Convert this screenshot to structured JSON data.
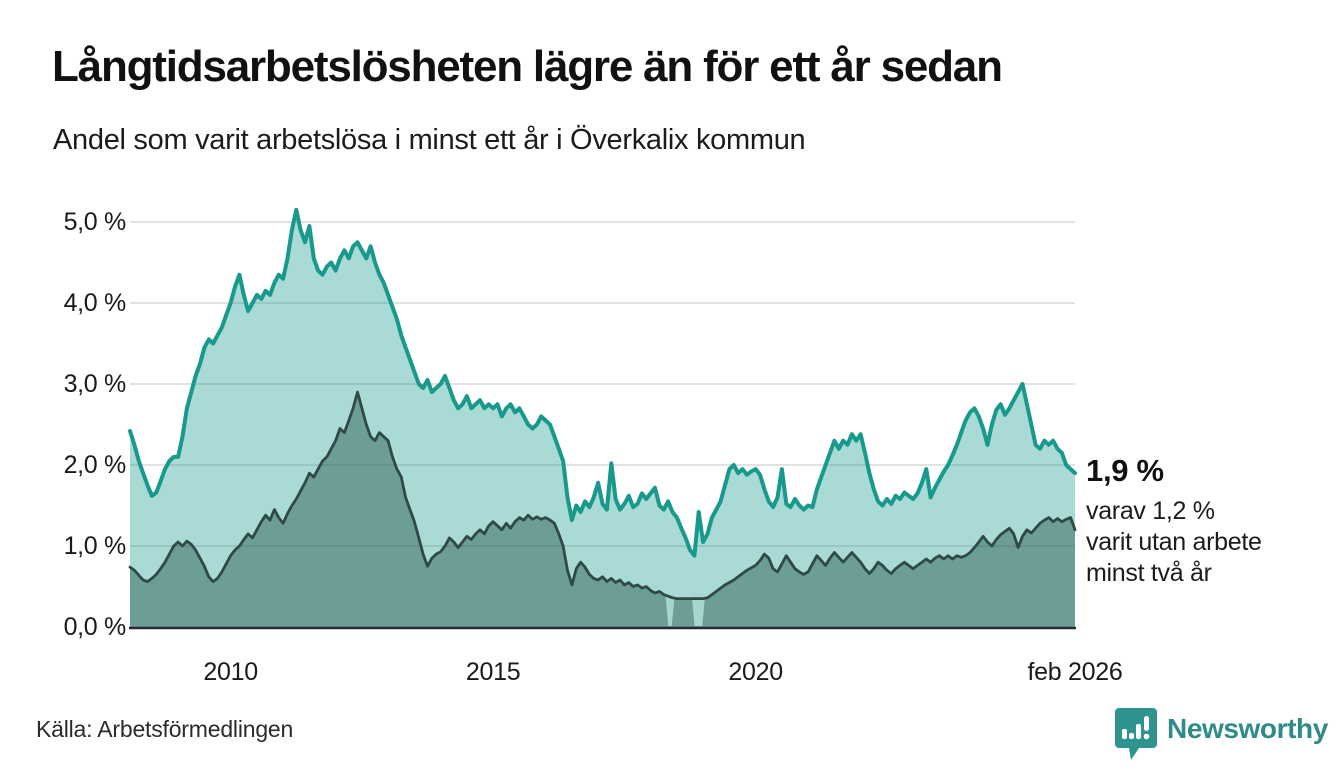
{
  "header": {
    "title": "Långtidsarbetslösheten lägre än för ett år sedan",
    "subtitle": "Andel som varit arbetslösa i minst ett år i Överkalix kommun"
  },
  "footer": {
    "source": "Källa: Arbetsförmedlingen",
    "logo_text": "Newsworthy"
  },
  "colors": {
    "accent_teal": "#17998c",
    "light_fill": "rgba(20,153,139,0.36)",
    "dark_line": "#2f4a46",
    "dark_fill": "rgba(33,81,74,0.45)",
    "gap_patch": "#a8d5cf",
    "grid": "#e2e2e2",
    "baseline": "#2b2b2b",
    "logo_teal": "#2e8b87",
    "text_dark": "#111111"
  },
  "chart_data": {
    "type": "area",
    "title": "Långtidsarbetslösheten lägre än för ett år sedan",
    "subtitle": "Andel som varit arbetslösa i minst ett år i Överkalix kommun",
    "x_start": 2008.0833,
    "x_end": 2026.0833,
    "frequency": "monthly",
    "ylim": [
      0,
      5.35
    ],
    "grid": true,
    "legend": "none",
    "y_ticks": [
      {
        "label": "5,0 %",
        "value": 5.0
      },
      {
        "label": "4,0 %",
        "value": 4.0
      },
      {
        "label": "3,0 %",
        "value": 3.0
      },
      {
        "label": "2,0 %",
        "value": 2.0
      },
      {
        "label": "1,0 %",
        "value": 1.0
      },
      {
        "label": "0,0 %",
        "value": 0.0
      }
    ],
    "x_ticks": [
      {
        "label": "2010",
        "value": 2010.0
      },
      {
        "label": "2015",
        "value": 2015.0
      },
      {
        "label": "2020",
        "value": 2020.0
      },
      {
        "label": "feb 2026",
        "value": 2026.0833
      }
    ],
    "annotation": {
      "value": "1,9 %",
      "lines": [
        "varav 1,2 %",
        "varit utan arbete",
        "minst två år"
      ]
    },
    "series": [
      {
        "name": "minst ett år",
        "last_value": 1.9,
        "values": [
          2.42,
          2.25,
          2.05,
          1.9,
          1.75,
          1.62,
          1.66,
          1.8,
          1.95,
          2.05,
          2.1,
          2.1,
          2.35,
          2.7,
          2.9,
          3.1,
          3.25,
          3.45,
          3.55,
          3.5,
          3.6,
          3.7,
          3.85,
          4.0,
          4.2,
          4.35,
          4.1,
          3.9,
          4.0,
          4.1,
          4.05,
          4.15,
          4.1,
          4.25,
          4.35,
          4.3,
          4.55,
          4.9,
          5.15,
          4.9,
          4.75,
          4.95,
          4.55,
          4.4,
          4.35,
          4.45,
          4.5,
          4.4,
          4.55,
          4.65,
          4.55,
          4.7,
          4.75,
          4.65,
          4.55,
          4.7,
          4.5,
          4.35,
          4.25,
          4.1,
          3.95,
          3.8,
          3.6,
          3.45,
          3.3,
          3.15,
          3.0,
          2.95,
          3.05,
          2.9,
          2.95,
          3.0,
          3.1,
          2.95,
          2.8,
          2.7,
          2.75,
          2.85,
          2.7,
          2.75,
          2.8,
          2.7,
          2.75,
          2.7,
          2.75,
          2.6,
          2.7,
          2.75,
          2.65,
          2.7,
          2.6,
          2.5,
          2.45,
          2.5,
          2.6,
          2.55,
          2.5,
          2.35,
          2.2,
          2.05,
          1.6,
          1.32,
          1.5,
          1.42,
          1.55,
          1.48,
          1.6,
          1.78,
          1.52,
          1.45,
          2.02,
          1.58,
          1.45,
          1.52,
          1.62,
          1.48,
          1.52,
          1.65,
          1.58,
          1.65,
          1.72,
          1.5,
          1.45,
          1.55,
          1.42,
          1.35,
          1.22,
          1.1,
          0.95,
          0.88,
          1.42,
          1.05,
          1.15,
          1.35,
          1.45,
          1.55,
          1.75,
          1.95,
          2.0,
          1.9,
          1.95,
          1.88,
          1.92,
          1.95,
          1.88,
          1.7,
          1.55,
          1.48,
          1.6,
          1.95,
          1.52,
          1.48,
          1.58,
          1.5,
          1.45,
          1.5,
          1.48,
          1.7,
          1.85,
          2.0,
          2.15,
          2.3,
          2.2,
          2.3,
          2.25,
          2.38,
          2.3,
          2.38,
          2.15,
          1.9,
          1.7,
          1.55,
          1.5,
          1.58,
          1.52,
          1.62,
          1.58,
          1.66,
          1.62,
          1.58,
          1.65,
          1.78,
          1.95,
          1.6,
          1.72,
          1.82,
          1.92,
          2.0,
          2.12,
          2.25,
          2.4,
          2.55,
          2.65,
          2.7,
          2.6,
          2.45,
          2.25,
          2.5,
          2.68,
          2.75,
          2.62,
          2.7,
          2.8,
          2.9,
          3.0,
          2.75,
          2.5,
          2.25,
          2.2,
          2.3,
          2.25,
          2.3,
          2.2,
          2.15,
          2.0,
          1.95,
          1.9
        ]
      },
      {
        "name": "minst två år",
        "last_value": 1.2,
        "gaps": [
          [
            2018.28,
            2018.46
          ],
          [
            2018.78,
            2019.04
          ]
        ],
        "values": [
          0.74,
          0.7,
          0.64,
          0.58,
          0.56,
          0.6,
          0.65,
          0.72,
          0.8,
          0.9,
          1.0,
          1.05,
          1.0,
          1.06,
          1.02,
          0.95,
          0.85,
          0.75,
          0.62,
          0.56,
          0.6,
          0.68,
          0.78,
          0.88,
          0.95,
          1.0,
          1.08,
          1.15,
          1.1,
          1.2,
          1.3,
          1.38,
          1.32,
          1.45,
          1.35,
          1.28,
          1.4,
          1.5,
          1.58,
          1.68,
          1.78,
          1.9,
          1.85,
          1.95,
          2.05,
          2.1,
          2.2,
          2.3,
          2.45,
          2.4,
          2.55,
          2.7,
          2.9,
          2.7,
          2.5,
          2.35,
          2.3,
          2.4,
          2.35,
          2.3,
          2.1,
          1.95,
          1.85,
          1.6,
          1.45,
          1.3,
          1.1,
          0.9,
          0.75,
          0.85,
          0.9,
          0.93,
          1.0,
          1.1,
          1.05,
          0.98,
          1.05,
          1.12,
          1.08,
          1.15,
          1.2,
          1.15,
          1.25,
          1.3,
          1.25,
          1.2,
          1.28,
          1.22,
          1.3,
          1.35,
          1.32,
          1.38,
          1.33,
          1.36,
          1.33,
          1.35,
          1.32,
          1.28,
          1.15,
          1.0,
          0.7,
          0.52,
          0.72,
          0.8,
          0.74,
          0.65,
          0.6,
          0.58,
          0.62,
          0.56,
          0.6,
          0.55,
          0.58,
          0.52,
          0.55,
          0.5,
          0.52,
          0.48,
          0.5,
          0.45,
          0.42,
          0.44,
          0.4,
          0.38,
          0.36,
          0.35,
          0.35,
          0.35,
          0.35,
          0.35,
          0.35,
          0.35,
          0.36,
          0.4,
          0.44,
          0.48,
          0.52,
          0.55,
          0.58,
          0.62,
          0.66,
          0.7,
          0.73,
          0.76,
          0.82,
          0.9,
          0.85,
          0.72,
          0.68,
          0.78,
          0.88,
          0.8,
          0.72,
          0.68,
          0.65,
          0.68,
          0.78,
          0.88,
          0.82,
          0.76,
          0.85,
          0.92,
          0.86,
          0.8,
          0.86,
          0.92,
          0.86,
          0.8,
          0.72,
          0.66,
          0.72,
          0.8,
          0.76,
          0.7,
          0.66,
          0.72,
          0.76,
          0.8,
          0.76,
          0.72,
          0.76,
          0.8,
          0.84,
          0.8,
          0.85,
          0.88,
          0.84,
          0.88,
          0.84,
          0.88,
          0.86,
          0.88,
          0.92,
          0.98,
          1.05,
          1.12,
          1.05,
          1.0,
          1.08,
          1.14,
          1.18,
          1.22,
          1.15,
          0.98,
          1.12,
          1.2,
          1.16,
          1.22,
          1.28,
          1.32,
          1.35,
          1.3,
          1.34,
          1.3,
          1.33,
          1.35,
          1.2
        ]
      }
    ]
  }
}
